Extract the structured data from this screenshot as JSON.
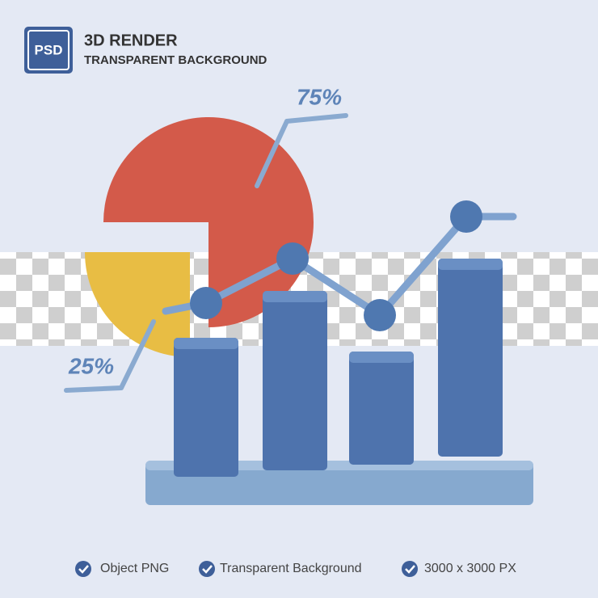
{
  "header": {
    "badge": "PSD",
    "title": "3D RENDER",
    "subtitle": "TRANSPARENT BACKGROUND"
  },
  "illustration": {
    "labels": [
      "75%",
      "25%"
    ]
  },
  "features": [
    "Object PNG",
    "Transparent Background",
    "3000 x 3000 PX"
  ]
}
